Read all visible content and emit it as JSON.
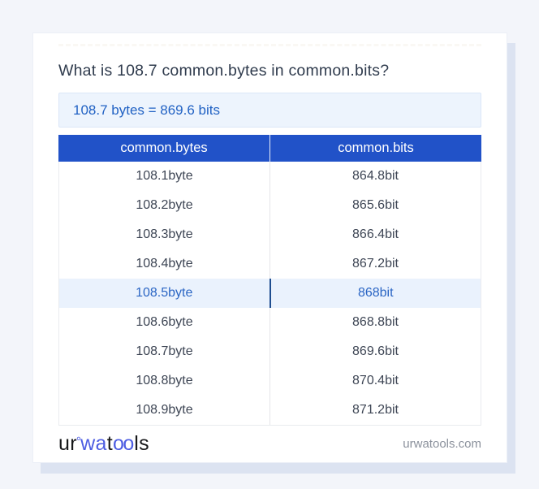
{
  "title": "What is 108.7 common.bytes in common.bits?",
  "result_banner": {
    "text": "108.7 bytes = 869.6 bits"
  },
  "table": {
    "headers": [
      "common.bytes",
      "common.bits"
    ],
    "rows": [
      {
        "bytes": "108.1byte",
        "bits": "864.8bit",
        "highlight": false
      },
      {
        "bytes": "108.2byte",
        "bits": "865.6bit",
        "highlight": false
      },
      {
        "bytes": "108.3byte",
        "bits": "866.4bit",
        "highlight": false
      },
      {
        "bytes": "108.4byte",
        "bits": "867.2bit",
        "highlight": false
      },
      {
        "bytes": "108.5byte",
        "bits": "868bit",
        "highlight": true
      },
      {
        "bytes": "108.6byte",
        "bits": "868.8bit",
        "highlight": false
      },
      {
        "bytes": "108.7byte",
        "bits": "869.6bit",
        "highlight": false
      },
      {
        "bytes": "108.8byte",
        "bits": "870.4bit",
        "highlight": false
      },
      {
        "bytes": "108.9byte",
        "bits": "871.2bit",
        "highlight": false
      }
    ]
  },
  "footer": {
    "logo_parts": {
      "p1": "ur",
      "degree": "°",
      "p2": "wa",
      "p3": "t",
      "p4": "oo",
      "p5": "ls"
    },
    "domain": "urwatools.com"
  },
  "colors": {
    "page_bg": "#f3f5fa",
    "card_shadow": "#dce3f1",
    "header_blue": "#2152c8",
    "result_text_blue": "#2162c4",
    "result_bg": "#edf4fd",
    "highlight_bg": "#eaf2fd",
    "highlight_text": "#2a65c4",
    "highlight_divider": "#1f4e90",
    "row_text": "#3d4554",
    "title_text": "#2f3b4d",
    "domain_text": "#8b919c",
    "logo_blue": "#4d5de2"
  }
}
